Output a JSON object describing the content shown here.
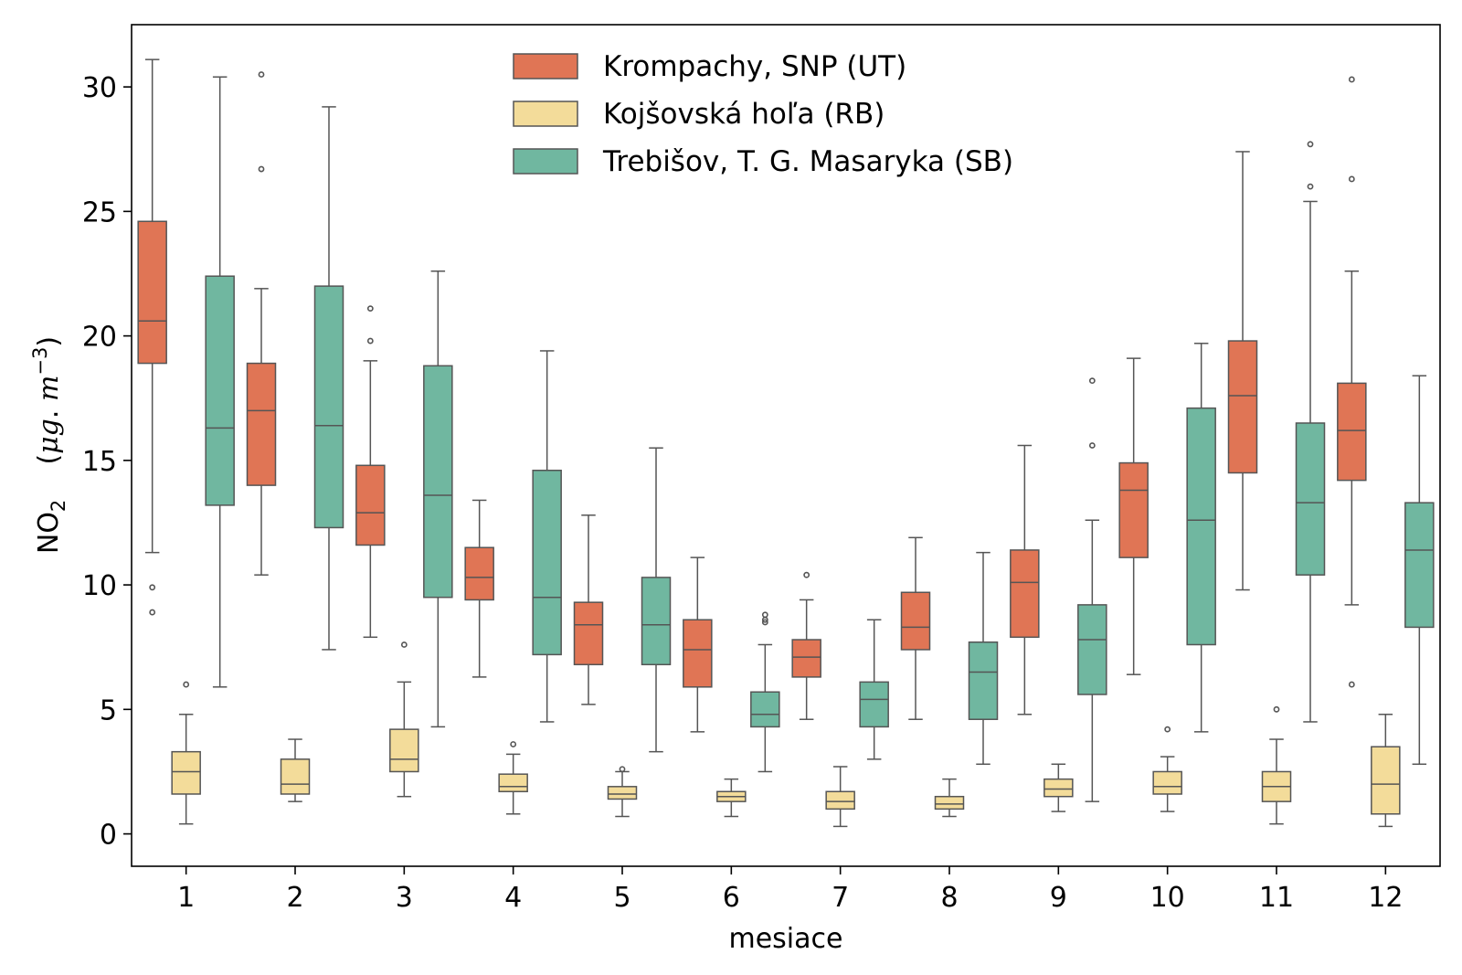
{
  "chart_data": {
    "type": "boxplot",
    "title": "",
    "xlabel": "mesiace",
    "ylabel": {
      "prefix": "NO",
      "subscript": "2",
      "unit_open": "(",
      "unit_mu": "μ",
      "unit_g": "g",
      "unit_dot": ".",
      "unit_m": "m",
      "unit_exp": "−3",
      "unit_close": ")"
    },
    "ylim": [
      -1.3,
      32.5
    ],
    "yticks": [
      0,
      5,
      10,
      15,
      20,
      25,
      30
    ],
    "categories": [
      "1",
      "2",
      "3",
      "4",
      "5",
      "6",
      "7",
      "8",
      "9",
      "10",
      "11",
      "12"
    ],
    "legend_position": "top-center",
    "series": [
      {
        "name": "Krompachy, SNP (UT)",
        "color": "#e07555",
        "boxes": [
          {
            "whislo": 11.3,
            "q1": 18.9,
            "med": 20.6,
            "q3": 24.6,
            "whishi": 31.1,
            "fliers": [
              9.9,
              8.9
            ]
          },
          {
            "whislo": 10.4,
            "q1": 14.0,
            "med": 17.0,
            "q3": 18.9,
            "whishi": 21.9,
            "fliers": [
              30.5,
              26.7
            ]
          },
          {
            "whislo": 7.9,
            "q1": 11.6,
            "med": 12.9,
            "q3": 14.8,
            "whishi": 19.0,
            "fliers": [
              21.1,
              19.8
            ]
          },
          {
            "whislo": 6.3,
            "q1": 9.4,
            "med": 10.3,
            "q3": 11.5,
            "whishi": 13.4,
            "fliers": []
          },
          {
            "whislo": 5.2,
            "q1": 6.8,
            "med": 8.4,
            "q3": 9.3,
            "whishi": 12.8,
            "fliers": []
          },
          {
            "whislo": 4.1,
            "q1": 5.9,
            "med": 7.4,
            "q3": 8.6,
            "whishi": 11.1,
            "fliers": []
          },
          {
            "whislo": 4.6,
            "q1": 6.3,
            "med": 7.1,
            "q3": 7.8,
            "whishi": 9.4,
            "fliers": [
              10.4
            ]
          },
          {
            "whislo": 4.6,
            "q1": 7.4,
            "med": 8.3,
            "q3": 9.7,
            "whishi": 11.9,
            "fliers": []
          },
          {
            "whislo": 4.8,
            "q1": 7.9,
            "med": 10.1,
            "q3": 11.4,
            "whishi": 15.6,
            "fliers": []
          },
          {
            "whislo": 6.4,
            "q1": 11.1,
            "med": 13.8,
            "q3": 14.9,
            "whishi": 19.1,
            "fliers": []
          },
          {
            "whislo": 9.8,
            "q1": 14.5,
            "med": 17.6,
            "q3": 19.8,
            "whishi": 27.4,
            "fliers": []
          },
          {
            "whislo": 9.2,
            "q1": 14.2,
            "med": 16.2,
            "q3": 18.1,
            "whishi": 22.6,
            "fliers": [
              30.3,
              26.3,
              6.0
            ]
          }
        ]
      },
      {
        "name": "Kojšovská hoľa (RB)",
        "color": "#f3dc9a",
        "boxes": [
          {
            "whislo": 0.4,
            "q1": 1.6,
            "med": 2.5,
            "q3": 3.3,
            "whishi": 4.8,
            "fliers": [
              6.0
            ]
          },
          {
            "whislo": 1.3,
            "q1": 1.6,
            "med": 2.0,
            "q3": 3.0,
            "whishi": 3.8,
            "fliers": []
          },
          {
            "whislo": 1.5,
            "q1": 2.5,
            "med": 3.0,
            "q3": 4.2,
            "whishi": 6.1,
            "fliers": [
              7.6
            ]
          },
          {
            "whislo": 0.8,
            "q1": 1.7,
            "med": 1.9,
            "q3": 2.4,
            "whishi": 3.2,
            "fliers": [
              3.6
            ]
          },
          {
            "whislo": 0.7,
            "q1": 1.4,
            "med": 1.6,
            "q3": 1.9,
            "whishi": 2.5,
            "fliers": [
              2.6
            ]
          },
          {
            "whislo": 0.7,
            "q1": 1.3,
            "med": 1.5,
            "q3": 1.7,
            "whishi": 2.2,
            "fliers": []
          },
          {
            "whislo": 0.3,
            "q1": 1.0,
            "med": 1.3,
            "q3": 1.7,
            "whishi": 2.7,
            "fliers": []
          },
          {
            "whislo": 0.7,
            "q1": 1.0,
            "med": 1.2,
            "q3": 1.5,
            "whishi": 2.2,
            "fliers": []
          },
          {
            "whislo": 0.9,
            "q1": 1.5,
            "med": 1.8,
            "q3": 2.2,
            "whishi": 2.8,
            "fliers": []
          },
          {
            "whislo": 0.9,
            "q1": 1.6,
            "med": 1.9,
            "q3": 2.5,
            "whishi": 3.1,
            "fliers": [
              4.2
            ]
          },
          {
            "whislo": 0.4,
            "q1": 1.3,
            "med": 1.9,
            "q3": 2.5,
            "whishi": 3.8,
            "fliers": [
              5.0
            ]
          },
          {
            "whislo": 0.3,
            "q1": 0.8,
            "med": 2.0,
            "q3": 3.5,
            "whishi": 4.8,
            "fliers": []
          }
        ]
      },
      {
        "name": "Trebišov, T. G. Masaryka (SB)",
        "color": "#70b7a0",
        "boxes": [
          {
            "whislo": 5.9,
            "q1": 13.2,
            "med": 16.3,
            "q3": 22.4,
            "whishi": 30.4,
            "fliers": []
          },
          {
            "whislo": 7.4,
            "q1": 12.3,
            "med": 16.4,
            "q3": 22.0,
            "whishi": 29.2,
            "fliers": []
          },
          {
            "whislo": 4.3,
            "q1": 9.5,
            "med": 13.6,
            "q3": 18.8,
            "whishi": 22.6,
            "fliers": []
          },
          {
            "whislo": 4.5,
            "q1": 7.2,
            "med": 9.5,
            "q3": 14.6,
            "whishi": 19.4,
            "fliers": []
          },
          {
            "whislo": 3.3,
            "q1": 6.8,
            "med": 8.4,
            "q3": 10.3,
            "whishi": 15.5,
            "fliers": []
          },
          {
            "whislo": 2.5,
            "q1": 4.3,
            "med": 4.8,
            "q3": 5.7,
            "whishi": 7.6,
            "fliers": [
              8.8,
              8.6,
              8.5
            ]
          },
          {
            "whislo": 3.0,
            "q1": 4.3,
            "med": 5.4,
            "q3": 6.1,
            "whishi": 8.6,
            "fliers": []
          },
          {
            "whislo": 2.8,
            "q1": 4.6,
            "med": 6.5,
            "q3": 7.7,
            "whishi": 11.3,
            "fliers": []
          },
          {
            "whislo": 1.3,
            "q1": 5.6,
            "med": 7.8,
            "q3": 9.2,
            "whishi": 12.6,
            "fliers": [
              18.2,
              15.6
            ]
          },
          {
            "whislo": 4.1,
            "q1": 7.6,
            "med": 12.6,
            "q3": 17.1,
            "whishi": 19.7,
            "fliers": []
          },
          {
            "whislo": 4.5,
            "q1": 10.4,
            "med": 13.3,
            "q3": 16.5,
            "whishi": 25.4,
            "fliers": [
              27.7,
              26.0
            ]
          },
          {
            "whislo": 2.8,
            "q1": 8.3,
            "med": 11.4,
            "q3": 13.3,
            "whishi": 18.4,
            "fliers": []
          }
        ]
      }
    ]
  }
}
